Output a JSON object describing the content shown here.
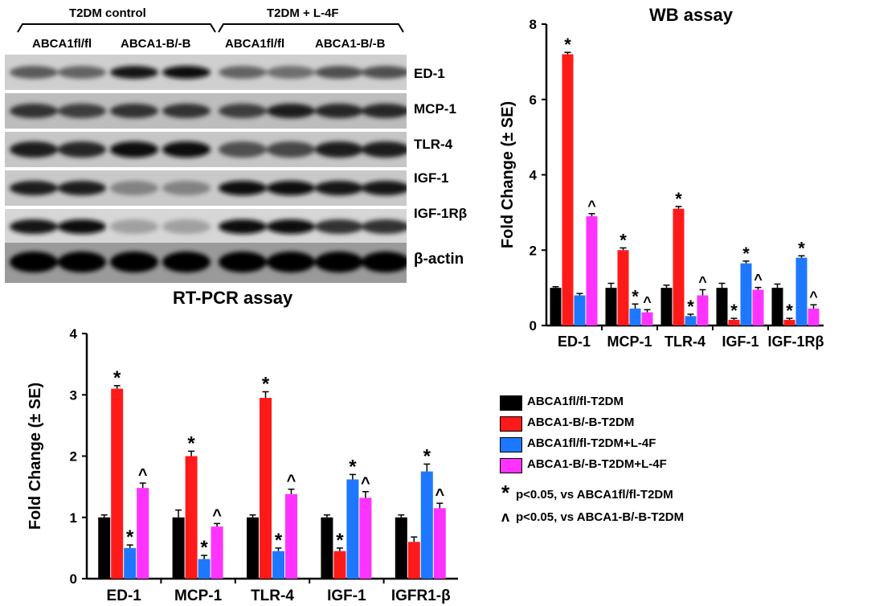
{
  "blot": {
    "groups": [
      "T2DM control",
      "T2DM + L-4F"
    ],
    "lanes": [
      "ABCA1fl/fl",
      "ABCA1-B/-B",
      "ABCA1fl/fl",
      "ABCA1-B/-B"
    ],
    "bands": [
      "ED-1",
      "MCP-1",
      "TLR-4",
      "IGF-1",
      "IGF-1Rβ",
      "β-actin"
    ]
  },
  "legend": {
    "items": [
      {
        "label": "ABCA1fl/fl-T2DM",
        "color": "#000000"
      },
      {
        "label": "ABCA1-B/-B-T2DM",
        "color": "#ff1a1a"
      },
      {
        "label": "ABCA1fl/fl-T2DM+L-4F",
        "color": "#1e78ff"
      },
      {
        "label": "ABCA1-B/-B-T2DM+L-4F",
        "color": "#ff33ff"
      }
    ],
    "note_star": "p<0.05, vs ABCA1fl/fl-T2DM",
    "note_caret": "p<0.05, vs ABCA1-B/-B-T2DM",
    "star_symbol": "*",
    "caret_symbol": "ʌ"
  },
  "chart_data": [
    {
      "id": "wb",
      "type": "bar",
      "title": "WB assay",
      "ylabel": "Fold Change (± SE)",
      "categories": [
        "ED-1",
        "MCP-1",
        "TLR-4",
        "IGF-1",
        "IGF-1Rβ"
      ],
      "ylim": [
        0,
        8
      ],
      "yticks": [
        0,
        2,
        4,
        6,
        8
      ],
      "series": [
        {
          "name": "ABCA1fl/fl-T2DM",
          "color": "#000000",
          "values": [
            1.0,
            1.0,
            1.0,
            1.0,
            1.0
          ],
          "errors": [
            0.03,
            0.12,
            0.07,
            0.12,
            0.1
          ],
          "marks": [
            "",
            "",
            "",
            "",
            ""
          ]
        },
        {
          "name": "ABCA1-B/-B-T2DM",
          "color": "#ff1a1a",
          "values": [
            7.2,
            2.0,
            3.1,
            0.15,
            0.15
          ],
          "errors": [
            0.05,
            0.06,
            0.06,
            0.04,
            0.04
          ],
          "marks": [
            "*",
            "*",
            "*",
            "*",
            "*"
          ]
        },
        {
          "name": "ABCA1fl/fl-T2DM+L-4F",
          "color": "#1e78ff",
          "values": [
            0.8,
            0.45,
            0.25,
            1.65,
            1.8
          ],
          "errors": [
            0.05,
            0.12,
            0.05,
            0.06,
            0.05
          ],
          "marks": [
            "",
            "*",
            "*",
            "*",
            "*"
          ]
        },
        {
          "name": "ABCA1-B/-B-T2DM+L-4F",
          "color": "#ff33ff",
          "values": [
            2.9,
            0.35,
            0.8,
            0.95,
            0.45
          ],
          "errors": [
            0.07,
            0.07,
            0.15,
            0.06,
            0.1
          ],
          "marks": [
            "^",
            "^",
            "^",
            "^",
            "^"
          ]
        }
      ]
    },
    {
      "id": "rt",
      "type": "bar",
      "title": "RT-PCR assay",
      "ylabel": "Fold Change (± SE)",
      "categories": [
        "ED-1",
        "MCP-1",
        "TLR-4",
        "IGF-1",
        "IGFR1-β"
      ],
      "ylim": [
        0,
        4
      ],
      "yticks": [
        0,
        1,
        2,
        3,
        4
      ],
      "series": [
        {
          "name": "ABCA1fl/fl-T2DM",
          "color": "#000000",
          "values": [
            1.0,
            1.0,
            1.0,
            1.0,
            1.0
          ],
          "errors": [
            0.04,
            0.12,
            0.04,
            0.04,
            0.04
          ],
          "marks": [
            "",
            "",
            "",
            "",
            ""
          ]
        },
        {
          "name": "ABCA1-B/-B-T2DM",
          "color": "#ff1a1a",
          "values": [
            3.1,
            2.0,
            2.95,
            0.45,
            0.6
          ],
          "errors": [
            0.05,
            0.08,
            0.1,
            0.05,
            0.08
          ],
          "marks": [
            "*",
            "*",
            "*",
            "*",
            ""
          ]
        },
        {
          "name": "ABCA1fl/fl-T2DM+L-4F",
          "color": "#1e78ff",
          "values": [
            0.5,
            0.32,
            0.45,
            1.62,
            1.75
          ],
          "errors": [
            0.05,
            0.06,
            0.05,
            0.08,
            0.12
          ],
          "marks": [
            "*",
            "*",
            "*",
            "*",
            "*"
          ]
        },
        {
          "name": "ABCA1-B/-B-T2DM+L-4F",
          "color": "#ff33ff",
          "values": [
            1.48,
            0.85,
            1.38,
            1.32,
            1.15
          ],
          "errors": [
            0.08,
            0.05,
            0.08,
            0.1,
            0.08
          ],
          "marks": [
            "^",
            "^",
            "^",
            "^",
            "^"
          ]
        }
      ]
    }
  ]
}
